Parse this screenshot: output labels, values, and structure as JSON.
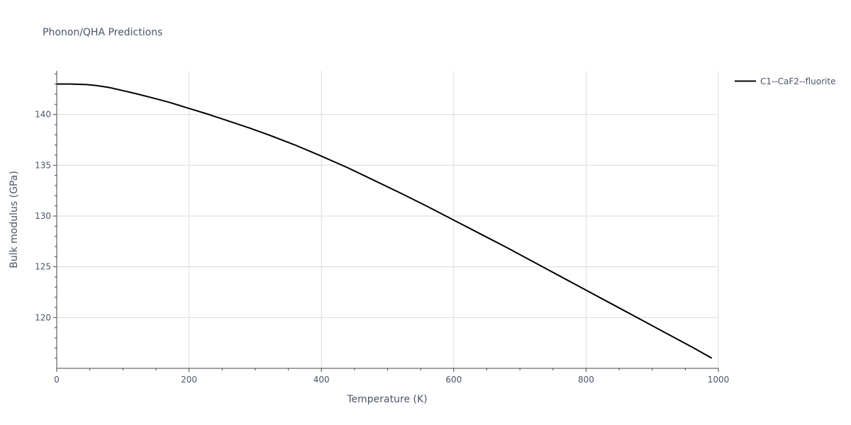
{
  "chart_data": {
    "type": "line",
    "title": "Phonon/QHA Predictions",
    "xlabel": "Temperature (K)",
    "ylabel": "Bulk modulus (GPa)",
    "xlim": [
      0,
      1000
    ],
    "ylim": [
      115,
      144.3
    ],
    "x_ticks": [
      0,
      200,
      400,
      600,
      800,
      1000
    ],
    "y_ticks": [
      120,
      125,
      130,
      135,
      140
    ],
    "grid": true,
    "legend_position": "top-right",
    "series": [
      {
        "name": "C1--CaF2--fluorite",
        "color": "#000000",
        "x": [
          0,
          20,
          45,
          60,
          80,
          100,
          120,
          150,
          170,
          200,
          230,
          260,
          290,
          320,
          360,
          400,
          440,
          480,
          520,
          560,
          600,
          640,
          680,
          720,
          760,
          800,
          840,
          880,
          920,
          960,
          990
        ],
        "y": [
          143.0,
          143.0,
          142.95,
          142.85,
          142.65,
          142.35,
          142.05,
          141.55,
          141.2,
          140.6,
          140.0,
          139.35,
          138.7,
          138.0,
          137.0,
          135.9,
          134.75,
          133.5,
          132.25,
          130.95,
          129.6,
          128.25,
          126.9,
          125.5,
          124.1,
          122.7,
          121.3,
          119.9,
          118.5,
          117.1,
          116.0
        ]
      }
    ]
  }
}
